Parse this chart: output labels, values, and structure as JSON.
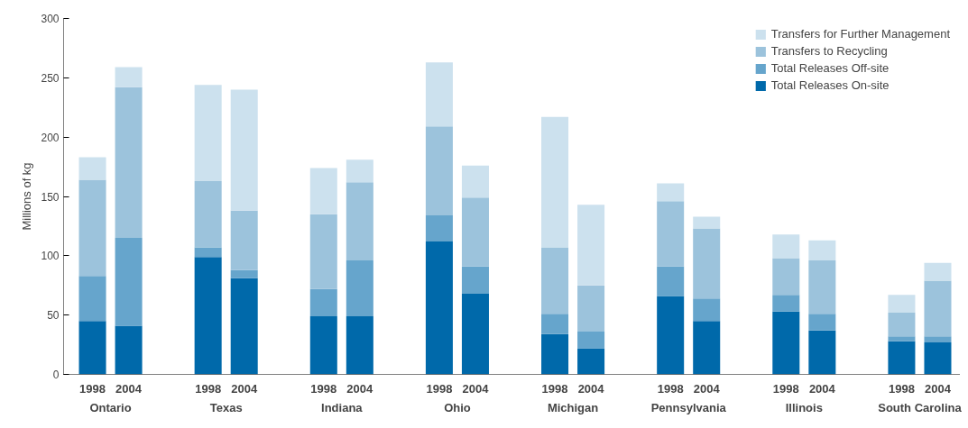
{
  "chart_data": {
    "type": "bar",
    "stacked": true,
    "ylabel": "Millions of kg",
    "categories": [
      "1998",
      "2004",
      "1998",
      "2004",
      "1998",
      "2004",
      "1998",
      "2004",
      "1998",
      "2004",
      "1998",
      "2004",
      "1998",
      "2004",
      "1998",
      "2004"
    ],
    "annotations": [
      "Ontario",
      "Texas",
      "Indiana",
      "Ohio",
      "Michigan",
      "Pennsylvania",
      "Illinois",
      "South Carolina"
    ],
    "series": [
      {
        "name": "Total Releases On-site",
        "color": "#0069aa",
        "values": [
          45,
          41,
          99,
          81,
          49,
          49,
          112,
          68,
          34,
          22,
          66,
          45,
          53,
          37,
          28,
          27
        ]
      },
      {
        "name": "Total Releases Off-site",
        "color": "#66a5cc",
        "values": [
          38,
          74,
          8,
          7,
          23,
          47,
          22,
          23,
          17,
          14,
          25,
          19,
          14,
          14,
          4,
          5
        ]
      },
      {
        "name": "Transfers to Recycling",
        "color": "#9cc3dc",
        "values": [
          81,
          127,
          56,
          50,
          63,
          66,
          75,
          58,
          56,
          39,
          55,
          59,
          31,
          45,
          20,
          47
        ]
      },
      {
        "name": "Transfers for Further Management",
        "color": "#cce1ee",
        "values": [
          19,
          17,
          81,
          102,
          39,
          19,
          54,
          27,
          110,
          68,
          15,
          10,
          20,
          17,
          15,
          15
        ]
      }
    ],
    "ylim": [
      0,
      300
    ],
    "yticks": [
      0,
      50,
      100,
      150,
      200,
      250,
      300
    ],
    "grid": false,
    "legend": "top right"
  }
}
